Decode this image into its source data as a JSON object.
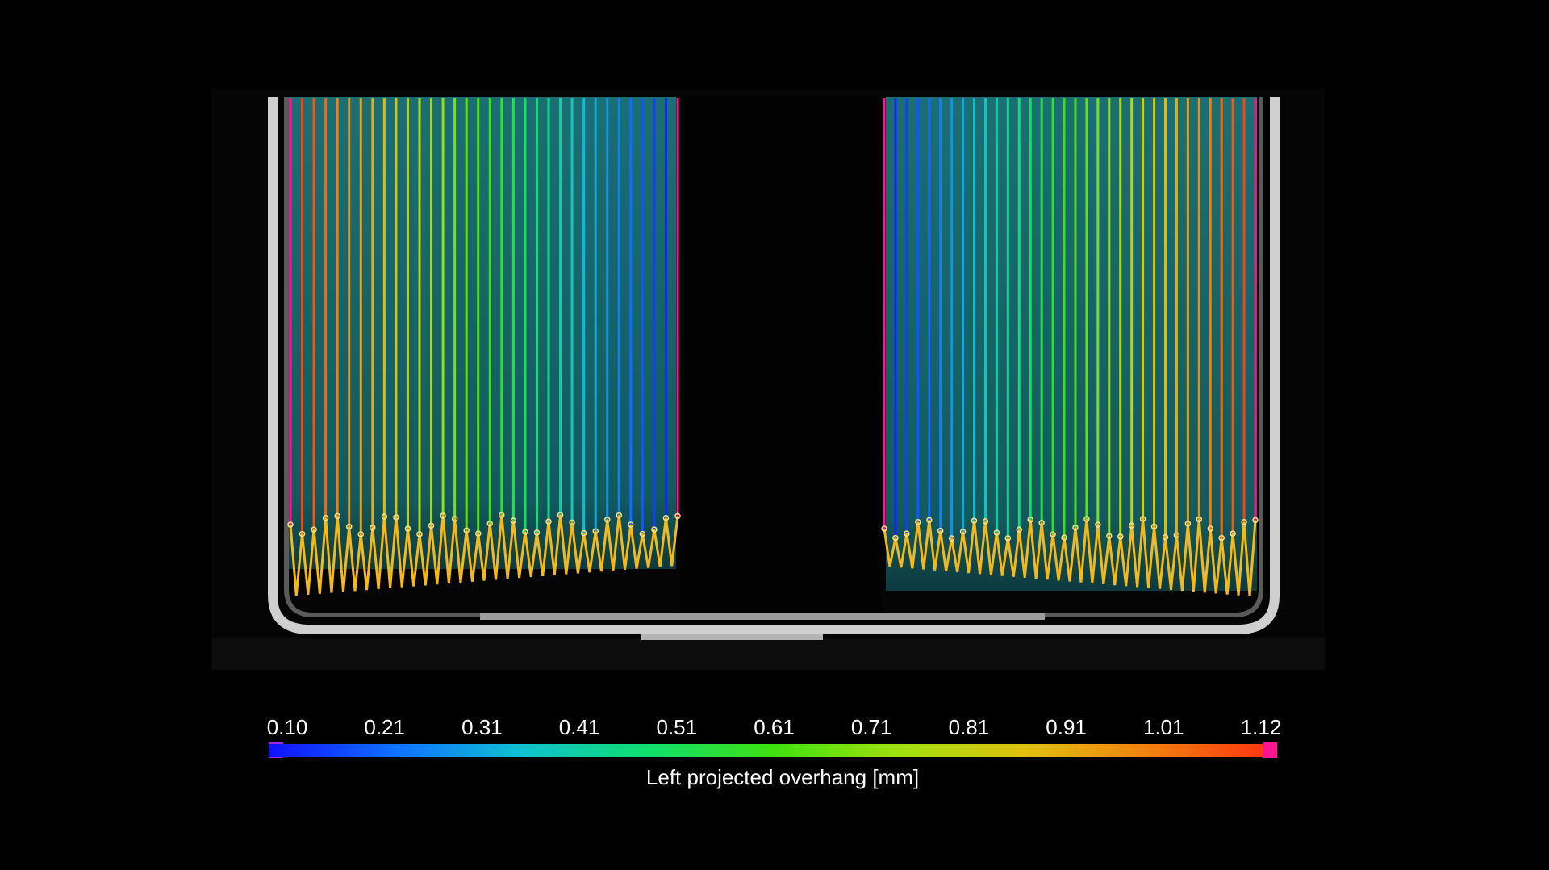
{
  "image": {
    "subject": "cell-stack-ct-cross-section",
    "panels": [
      {
        "name": "left-electrode-stack",
        "layer_count": 34
      },
      {
        "name": "right-electrode-stack",
        "layer_count": 34
      }
    ]
  },
  "colorbar": {
    "tick_labels": [
      "0.10",
      "0.21",
      "0.31",
      "0.41",
      "0.51",
      "0.61",
      "0.71",
      "0.81",
      "0.91",
      "1.01",
      "1.12"
    ],
    "caption": "Left projected overhang [mm]",
    "under_color": "#a020f0",
    "over_color": "#ff1493",
    "gradient_stops": [
      "#1010ff",
      "#1070ff",
      "#10c0d0",
      "#10e070",
      "#40e010",
      "#a0e010",
      "#e0c010",
      "#f08010",
      "#ff3010"
    ]
  },
  "colors": {
    "background": "#000000",
    "stack_fill": "#1a7070",
    "casing": "#c8c8c8",
    "zigzag": "#f5b81a"
  }
}
